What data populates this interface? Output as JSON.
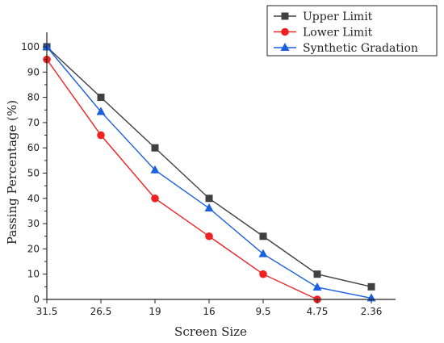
{
  "chart_data": {
    "type": "line",
    "categories": [
      "31.5",
      "26.5",
      "19",
      "16",
      "9.5",
      "4.75",
      "2.36"
    ],
    "series": [
      {
        "name": "Upper Limit",
        "values": [
          100,
          80,
          60,
          40,
          25,
          10,
          5
        ],
        "color": "#404040",
        "marker": "square"
      },
      {
        "name": "Lower Limit",
        "values": [
          95,
          65,
          40,
          25,
          10,
          0,
          null
        ],
        "color": "#ee2222",
        "marker": "circle"
      },
      {
        "name": "Synthetic Gradation",
        "values": [
          100,
          74.3,
          51.2,
          36.1,
          18,
          4.8,
          0.5
        ],
        "color": "#1a5fe0",
        "marker": "triangle"
      }
    ],
    "xlabel": "Screen Size",
    "ylabel": "Passing Percentage (%)",
    "ylim": [
      0,
      100
    ],
    "yticks": [
      "0",
      "10",
      "20",
      "30",
      "40",
      "50",
      "60",
      "70",
      "80",
      "90",
      "100"
    ],
    "grid": false,
    "legend_position": "top-right"
  }
}
